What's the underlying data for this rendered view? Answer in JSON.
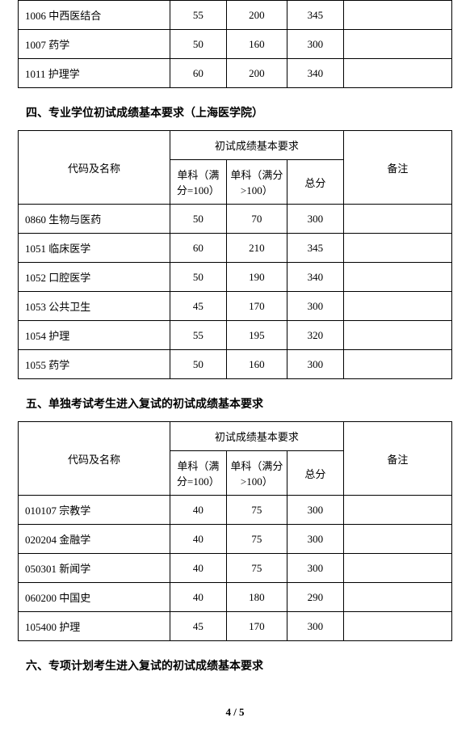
{
  "table1": {
    "rows": [
      {
        "name": "1006 中西医结合",
        "s100": "55",
        "s100p": "200",
        "total": "345",
        "note": ""
      },
      {
        "name": "1007 药学",
        "s100": "50",
        "s100p": "160",
        "total": "300",
        "note": ""
      },
      {
        "name": "1011 护理学",
        "s100": "60",
        "s100p": "200",
        "total": "340",
        "note": ""
      }
    ]
  },
  "section4_title": "四、专业学位初试成绩基本要求（上海医学院）",
  "hdr": {
    "code_name": "代码及名称",
    "req": "初试成绩基本要求",
    "s100": "单科（满分=100）",
    "s100p": "单科（满分>100）",
    "total": "总分",
    "note": "备注"
  },
  "table2": {
    "rows": [
      {
        "name": "0860 生物与医药",
        "s100": "50",
        "s100p": "70",
        "total": "300",
        "note": ""
      },
      {
        "name": "1051 临床医学",
        "s100": "60",
        "s100p": "210",
        "total": "345",
        "note": ""
      },
      {
        "name": "1052 口腔医学",
        "s100": "50",
        "s100p": "190",
        "total": "340",
        "note": ""
      },
      {
        "name": "1053 公共卫生",
        "s100": "45",
        "s100p": "170",
        "total": "300",
        "note": ""
      },
      {
        "name": "1054 护理",
        "s100": "55",
        "s100p": "195",
        "total": "320",
        "note": ""
      },
      {
        "name": "1055 药学",
        "s100": "50",
        "s100p": "160",
        "total": "300",
        "note": ""
      }
    ]
  },
  "section5_title": "五、单独考试考生进入复试的初试成绩基本要求",
  "table3": {
    "rows": [
      {
        "name": "010107 宗教学",
        "s100": "40",
        "s100p": "75",
        "total": "300",
        "note": ""
      },
      {
        "name": "020204 金融学",
        "s100": "40",
        "s100p": "75",
        "total": "300",
        "note": ""
      },
      {
        "name": "050301 新闻学",
        "s100": "40",
        "s100p": "75",
        "total": "300",
        "note": ""
      },
      {
        "name": "060200 中国史",
        "s100": "40",
        "s100p": "180",
        "total": "290",
        "note": ""
      },
      {
        "name": "105400 护理",
        "s100": "45",
        "s100p": "170",
        "total": "300",
        "note": ""
      }
    ]
  },
  "section6_title": "六、专项计划考生进入复试的初试成绩基本要求",
  "page_number": "4 / 5",
  "style": {
    "border_color": "#000000",
    "bg_color": "#ffffff",
    "font_size_cell": 13,
    "font_size_title": 14,
    "col_widths_pct": [
      35,
      13,
      14,
      13,
      25
    ]
  }
}
